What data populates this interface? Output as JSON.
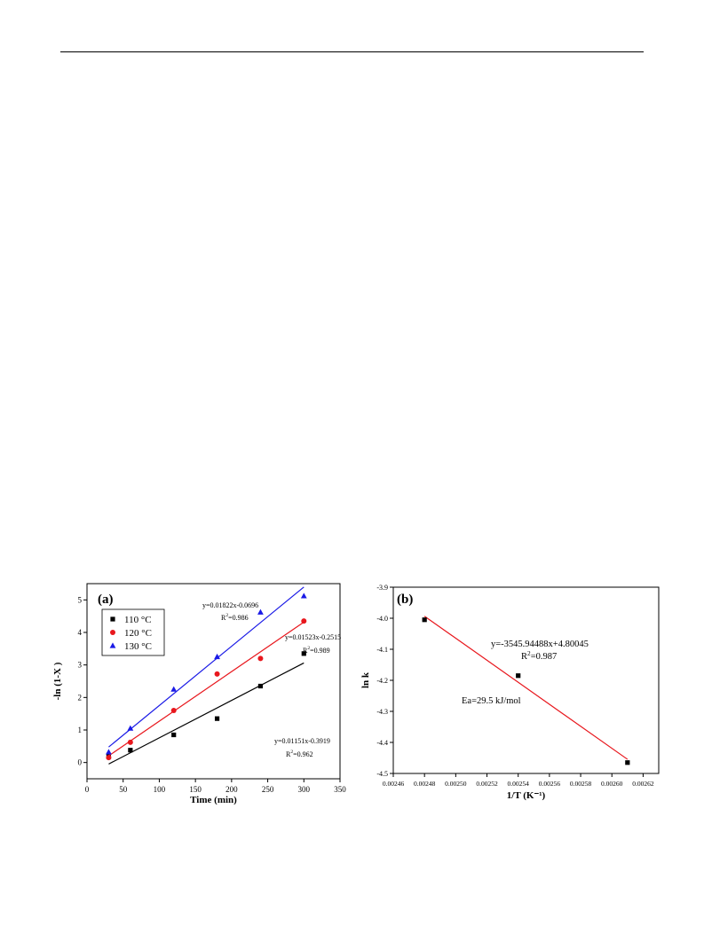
{
  "chart_data": [
    {
      "type": "scatter",
      "panel_label": "(a)",
      "xlabel": "Time (min)",
      "ylabel": "-ln (1-X )",
      "xlim": [
        0,
        350
      ],
      "ylim": [
        -0.5,
        5.5
      ],
      "x_ticks": [
        0,
        50,
        100,
        150,
        200,
        250,
        300,
        350
      ],
      "y_ticks": [
        0,
        1,
        2,
        3,
        4,
        5
      ],
      "legend_position": "top-left",
      "series": [
        {
          "name": "110 °C",
          "marker": "square",
          "color": "#000000",
          "points": [
            [
              30,
              0.18
            ],
            [
              60,
              0.38
            ],
            [
              120,
              0.85
            ],
            [
              180,
              1.35
            ],
            [
              240,
              2.35
            ],
            [
              300,
              3.35
            ]
          ],
          "fit": {
            "slope": 0.01151,
            "intercept": -0.3919,
            "x_range": [
              30,
              300
            ]
          },
          "equation": "y=0.01151x-0.3919",
          "r2": "=0.962"
        },
        {
          "name": "120 °C",
          "marker": "circle",
          "color": "#e8171d",
          "points": [
            [
              30,
              0.15
            ],
            [
              60,
              0.62
            ],
            [
              120,
              1.6
            ],
            [
              180,
              2.72
            ],
            [
              240,
              3.2
            ],
            [
              300,
              4.35
            ]
          ],
          "fit": {
            "slope": 0.01523,
            "intercept": -0.2515,
            "x_range": [
              30,
              300
            ]
          },
          "equation": "y=0.01523x-0.2515",
          "r2": "=0.989"
        },
        {
          "name": "130 °C",
          "marker": "triangle",
          "color": "#1a1ae6",
          "points": [
            [
              30,
              0.32
            ],
            [
              60,
              1.05
            ],
            [
              120,
              2.25
            ],
            [
              180,
              3.25
            ],
            [
              240,
              4.62
            ],
            [
              300,
              5.12
            ]
          ],
          "fit": {
            "slope": 0.01822,
            "intercept": -0.0696,
            "x_range": [
              30,
              300
            ]
          },
          "equation": "y=0.01822x-0.0696",
          "r2": "=0.986"
        }
      ]
    },
    {
      "type": "scatter",
      "panel_label": "(b)",
      "xlabel": "1/T (K⁻¹)",
      "ylabel": "ln k",
      "xlim": [
        0.00246,
        0.00263
      ],
      "ylim": [
        -4.5,
        -3.9
      ],
      "x_ticks": [
        "0.00246",
        "0.00248",
        "0.00250",
        "0.00252",
        "0.00254",
        "0.00256",
        "0.00258",
        "0.00260",
        "0.00262"
      ],
      "y_ticks": [
        "-3.9",
        "-4.0",
        "-4.1",
        "-4.2",
        "-4.3",
        "-4.4",
        "-4.5"
      ],
      "points": [
        [
          0.00248,
          -4.005
        ],
        [
          0.00254,
          -4.185
        ],
        [
          0.00261,
          -4.465
        ]
      ],
      "point_color": "#000000",
      "fit": {
        "slope": -3545.94488,
        "intercept": 4.80045,
        "x_range": [
          0.00248,
          0.00261
        ],
        "color": "#e8171d"
      },
      "equation": "y=-3545.94488x+4.80045",
      "r2": "=0.987",
      "annotation": "Ea=29.5 kJ/mol"
    }
  ]
}
